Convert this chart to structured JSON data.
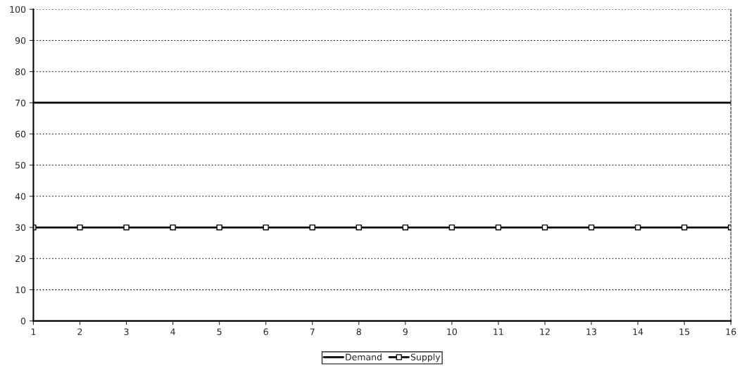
{
  "chart_data": {
    "type": "line",
    "x": [
      1,
      2,
      3,
      4,
      5,
      6,
      7,
      8,
      9,
      10,
      11,
      12,
      13,
      14,
      15,
      16
    ],
    "series": [
      {
        "name": "Demand",
        "color": "#000000",
        "values": [
          70,
          70,
          70,
          70,
          70,
          70,
          70,
          70,
          70,
          70,
          70,
          70,
          70,
          70,
          70,
          70
        ],
        "marker": "none"
      },
      {
        "name": "Supply",
        "color": "#000000",
        "values": [
          30,
          30,
          30,
          30,
          30,
          30,
          30,
          30,
          30,
          30,
          30,
          30,
          30,
          30,
          30,
          30
        ],
        "marker": "square"
      }
    ],
    "xlim": [
      1,
      16
    ],
    "xticks": [
      1,
      2,
      3,
      4,
      5,
      6,
      7,
      8,
      9,
      10,
      11,
      12,
      13,
      14,
      15,
      16
    ],
    "ylim": [
      0,
      100
    ],
    "yticks": [
      0,
      10,
      20,
      30,
      40,
      50,
      60,
      70,
      80,
      90,
      100
    ],
    "grid": "y",
    "legend": "bottom"
  }
}
